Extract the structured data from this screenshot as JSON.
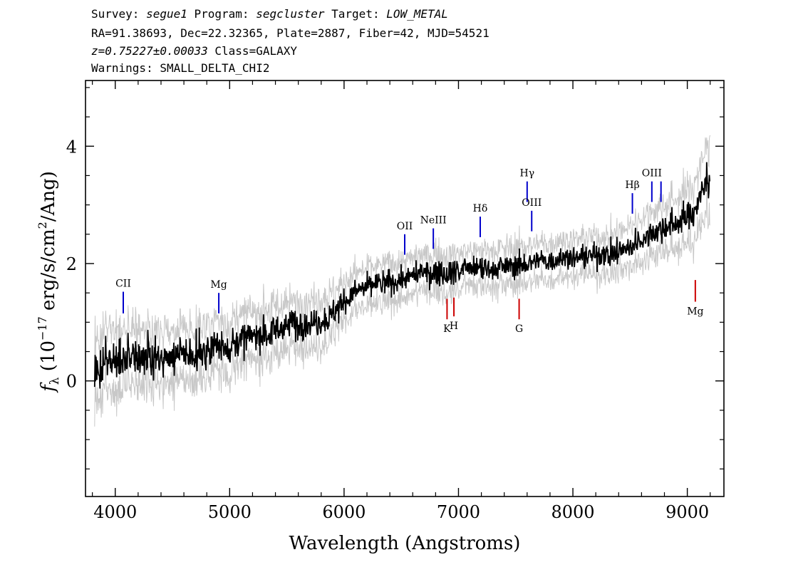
{
  "header": {
    "line1": {
      "survey_label": "Survey: ",
      "survey": "segue1",
      "program_label": " Program: ",
      "program": "segcluster",
      "target_label": " Target: ",
      "target": "LOW_METAL"
    },
    "line2": "RA=91.38693, Dec=22.32365, Plate=2887, Fiber=42, MJD=54521",
    "line3": {
      "z": "z=0.75227±0.00033",
      "class": " Class=GALAXY"
    },
    "line4": "Warnings: SMALL_DELTA_CHI2"
  },
  "chart_data": {
    "type": "line",
    "title": "",
    "xlabel": "Wavelength (Angstroms)",
    "ylabel": "f_λ (10^-17 erg/s/cm^2/Ang)",
    "ylabel_parts": {
      "f": "f",
      "sub": "λ",
      "pre": " (10",
      "exp": "−17",
      "mid": " erg/s/cm",
      "exp2": "2",
      "post": "/Ang)"
    },
    "xlim": [
      3740,
      9320
    ],
    "ylim": [
      -1.97,
      5.12
    ],
    "xticks": [
      4000,
      5000,
      6000,
      7000,
      8000,
      9000
    ],
    "xtick_labels": [
      "4000",
      "5000",
      "6000",
      "7000",
      "8000",
      "9000"
    ],
    "yticks": [
      0,
      2,
      4
    ],
    "ytick_labels": [
      "0",
      "2",
      "4"
    ],
    "colors": {
      "flux": "#000000",
      "error": "#c8c8c8",
      "emission_line": "#0000cc",
      "absorption_line": "#cc0000"
    },
    "series": [
      {
        "name": "flux",
        "x": [
          3820,
          3900,
          4000,
          4100,
          4200,
          4300,
          4400,
          4500,
          4600,
          4700,
          4800,
          4900,
          5000,
          5100,
          5200,
          5300,
          5400,
          5500,
          5600,
          5700,
          5800,
          5880,
          5950,
          6000,
          6050,
          6100,
          6150,
          6200,
          6300,
          6400,
          6500,
          6600,
          6700,
          6800,
          6900,
          7000,
          7100,
          7200,
          7300,
          7400,
          7500,
          7600,
          7700,
          7800,
          7900,
          8000,
          8100,
          8200,
          8300,
          8400,
          8500,
          8600,
          8700,
          8800,
          8900,
          9000,
          9050,
          9100,
          9150,
          9200
        ],
        "y": [
          0.2,
          0.3,
          0.35,
          0.4,
          0.35,
          0.4,
          0.35,
          0.4,
          0.45,
          0.5,
          0.55,
          0.6,
          0.6,
          0.7,
          0.75,
          0.8,
          0.85,
          0.95,
          0.98,
          1.0,
          1.05,
          1.1,
          1.2,
          1.35,
          1.45,
          1.5,
          1.55,
          1.6,
          1.65,
          1.7,
          1.72,
          1.8,
          1.82,
          1.85,
          1.85,
          1.88,
          1.9,
          1.9,
          1.92,
          1.95,
          1.95,
          2.0,
          2.05,
          2.05,
          2.1,
          2.1,
          2.1,
          2.15,
          2.15,
          2.2,
          2.3,
          2.45,
          2.55,
          2.6,
          2.7,
          2.8,
          2.9,
          3.05,
          3.3,
          3.6
        ]
      },
      {
        "name": "error",
        "x": [
          3820,
          4000,
          4200,
          4500,
          5000,
          5500,
          5800,
          6000,
          6500,
          7000,
          7500,
          8000,
          8500,
          8800,
          9000,
          9100,
          9200
        ],
        "y": [
          0.45,
          0.45,
          0.42,
          0.4,
          0.38,
          0.35,
          0.35,
          0.3,
          0.28,
          0.28,
          0.28,
          0.28,
          0.3,
          0.35,
          0.4,
          0.45,
          0.55
        ]
      }
    ],
    "lines": [
      {
        "label": "CII",
        "x": 4070,
        "y0": 1.15,
        "y1": 1.52,
        "kind": "emission",
        "label_pos": "above"
      },
      {
        "label": "Mg",
        "x": 4905,
        "y0": 1.15,
        "y1": 1.5,
        "kind": "emission",
        "label_pos": "above"
      },
      {
        "label": "OII",
        "x": 6530,
        "y0": 2.15,
        "y1": 2.5,
        "kind": "emission",
        "label_pos": "above"
      },
      {
        "label": "NeIII",
        "x": 6780,
        "y0": 2.25,
        "y1": 2.6,
        "kind": "emission",
        "label_pos": "above"
      },
      {
        "label": "Hδ",
        "x": 7190,
        "y0": 2.45,
        "y1": 2.8,
        "kind": "emission",
        "label_pos": "above"
      },
      {
        "label": "Hγ",
        "x": 7600,
        "y0": 3.05,
        "y1": 3.4,
        "kind": "emission",
        "label_pos": "above"
      },
      {
        "label": "OIII",
        "x": 7640,
        "y0": 2.55,
        "y1": 2.9,
        "kind": "emission",
        "label_pos": "above"
      },
      {
        "label": "Hβ",
        "x": 8520,
        "y0": 2.85,
        "y1": 3.2,
        "kind": "emission",
        "label_pos": "above"
      },
      {
        "label": "OIII",
        "x": 8690,
        "y0": 3.05,
        "y1": 3.4,
        "kind": "emission",
        "label_pos": "above"
      },
      {
        "label": "",
        "x": 8770,
        "y0": 3.05,
        "y1": 3.4,
        "kind": "emission",
        "label_pos": "above"
      },
      {
        "label": "K",
        "x": 6900,
        "y0": 1.05,
        "y1": 1.4,
        "kind": "absorption",
        "label_pos": "below"
      },
      {
        "label": "H",
        "x": 6960,
        "y0": 1.1,
        "y1": 1.42,
        "kind": "absorption",
        "label_pos": "below"
      },
      {
        "label": "G",
        "x": 7530,
        "y0": 1.05,
        "y1": 1.4,
        "kind": "absorption",
        "label_pos": "below"
      },
      {
        "label": "Mg",
        "x": 9070,
        "y0": 1.35,
        "y1": 1.72,
        "kind": "absorption",
        "label_pos": "below"
      }
    ],
    "grid": false,
    "legend": "none"
  }
}
